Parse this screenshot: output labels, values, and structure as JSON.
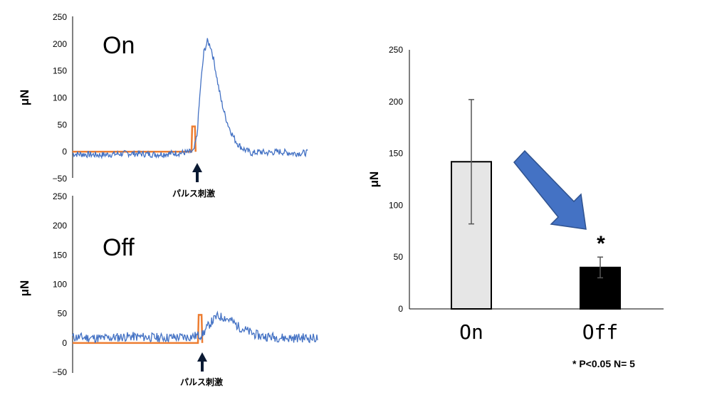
{
  "colors": {
    "trace": "#4472c4",
    "pulse": "#ed7d31",
    "bar_on": "#e6e6e6",
    "bar_off": "#000000",
    "arrow": "#4472c4"
  },
  "chart_data": [
    {
      "type": "line",
      "panel_label": "On",
      "ylabel": "μN",
      "ylim": [
        -50,
        250
      ],
      "yticks": [
        "250",
        "200",
        "150",
        "100",
        "50",
        "0",
        "−50"
      ],
      "stimulus_label": "パルス刺激",
      "series": [
        {
          "x": [
            0,
            172,
            173,
            174,
            176,
            177,
            178
          ],
          "y": [
            0,
            0,
            47,
            47,
            47,
            47,
            0
          ]
        },
        {
          "x": [
            0,
            40,
            80,
            120,
            160,
            175,
            180,
            185,
            190,
            195,
            200,
            205,
            210,
            215,
            220,
            225,
            230,
            235,
            240,
            245,
            250,
            255,
            260,
            270,
            280,
            300,
            320,
            340
          ],
          "y": [
            -4,
            -6,
            -3,
            -5,
            -2,
            0,
            30,
            120,
            185,
            205,
            195,
            165,
            128,
            95,
            70,
            50,
            35,
            22,
            13,
            7,
            3,
            0,
            -3,
            0,
            -2,
            0,
            -3,
            -2
          ]
        }
      ]
    },
    {
      "type": "line",
      "panel_label": "Off",
      "ylabel": "μN",
      "ylim": [
        -50,
        250
      ],
      "yticks": [
        "250",
        "200",
        "150",
        "100",
        "50",
        "0",
        "−50"
      ],
      "stimulus_label": "パルス刺激",
      "series": [
        {
          "x": [
            0,
            174,
            175,
            176,
            178,
            179,
            180
          ],
          "y": [
            0,
            0,
            48,
            48,
            48,
            48,
            0
          ]
        },
        {
          "x": [
            0,
            40,
            80,
            120,
            160,
            180,
            190,
            200,
            210,
            220,
            230,
            240,
            250,
            260,
            280,
            300,
            320,
            340
          ],
          "y": [
            10,
            8,
            11,
            9,
            10,
            14,
            32,
            45,
            44,
            38,
            28,
            22,
            16,
            12,
            10,
            8,
            9,
            8
          ]
        }
      ]
    },
    {
      "type": "bar",
      "categories": [
        "On",
        "Off"
      ],
      "values": [
        142,
        40
      ],
      "errors": [
        60,
        10
      ],
      "ylabel": "μN",
      "ylim": [
        0,
        250
      ],
      "yticks": [
        "250",
        "200",
        "150",
        "100",
        "50",
        "0"
      ],
      "significance_marker": "*",
      "footnote": "* P<0.05  N= 5"
    }
  ]
}
